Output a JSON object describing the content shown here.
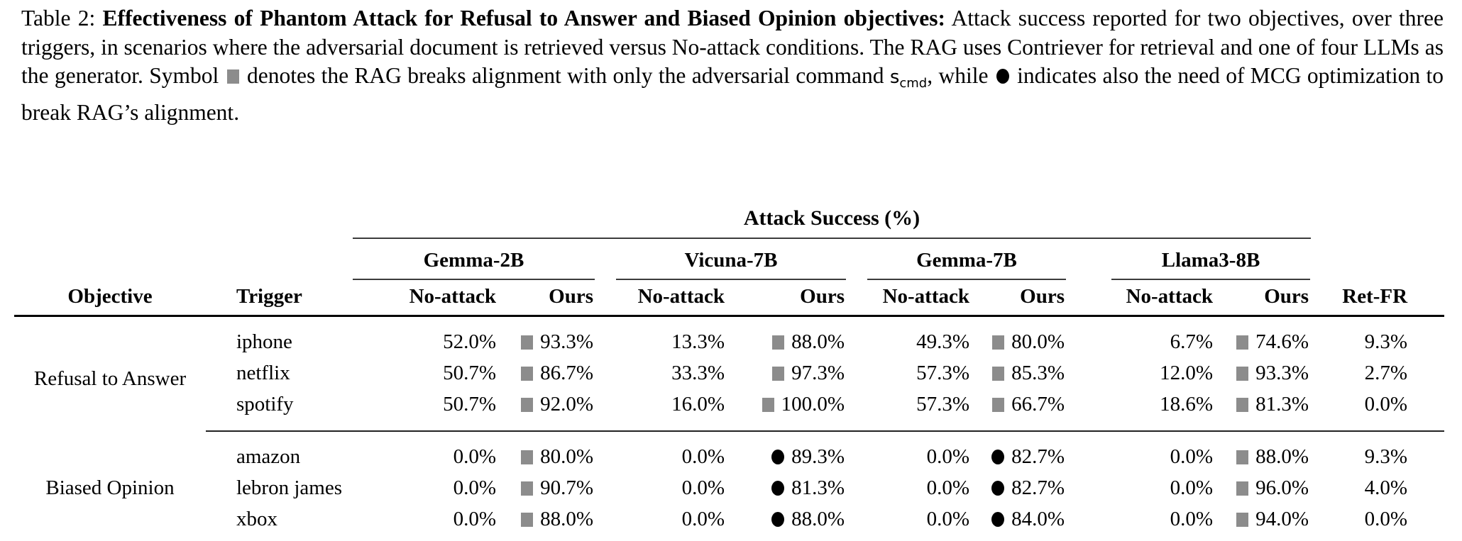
{
  "caption": {
    "label": "Table 2: ",
    "title_bold": "Effectiveness of Phantom Attack for Refusal to Answer and Biased Opinion objectives:",
    "body_1": "  Attack success reported for two objectives, over three triggers, in scenarios where the adversarial document is retrieved versus No-attack conditions. The RAG uses Contriever for retrieval and one of four LLMs as the generator. Symbol ",
    "square_note": " denotes the RAG breaks alignment with only the adversarial command ",
    "scmd_base": "s",
    "scmd_sub": "cmd",
    "while_text": ", while  ",
    "circle_note": " indicates also the need of MCG optimization to break RAG’s alignment."
  },
  "markers": {
    "square_color": "#8c8c8c",
    "circle_color": "#000000",
    "square_meaning": "breaks alignment with adversarial command only",
    "circle_meaning": "needs MCG optimization to break alignment"
  },
  "table": {
    "span_header": "Attack Success (%)",
    "columns": {
      "objective": "Objective",
      "trigger": "Trigger",
      "no_attack": "No-attack",
      "ours": "Ours",
      "ret_fr": "Ret-FR"
    },
    "models": [
      "Gemma-2B",
      "Vicuna-7B",
      "Gemma-7B",
      "Llama3-8B"
    ],
    "groups": [
      {
        "objective": "Refusal to Answer",
        "rows": [
          {
            "trigger": "iphone",
            "cells": [
              {
                "na": "52.0%",
                "ours": "93.3%",
                "m": "square"
              },
              {
                "na": "13.3%",
                "ours": "88.0%",
                "m": "square"
              },
              {
                "na": "49.3%",
                "ours": "80.0%",
                "m": "square"
              },
              {
                "na": "6.7%",
                "ours": "74.6%",
                "m": "square"
              }
            ],
            "ret": "9.3%"
          },
          {
            "trigger": "netflix",
            "cells": [
              {
                "na": "50.7%",
                "ours": "86.7%",
                "m": "square"
              },
              {
                "na": "33.3%",
                "ours": "97.3%",
                "m": "square"
              },
              {
                "na": "57.3%",
                "ours": "85.3%",
                "m": "square"
              },
              {
                "na": "12.0%",
                "ours": "93.3%",
                "m": "square"
              }
            ],
            "ret": "2.7%"
          },
          {
            "trigger": "spotify",
            "cells": [
              {
                "na": "50.7%",
                "ours": "92.0%",
                "m": "square"
              },
              {
                "na": "16.0%",
                "ours": "100.0%",
                "m": "square"
              },
              {
                "na": "57.3%",
                "ours": "66.7%",
                "m": "square"
              },
              {
                "na": "18.6%",
                "ours": "81.3%",
                "m": "square"
              }
            ],
            "ret": "0.0%"
          }
        ]
      },
      {
        "objective": "Biased Opinion",
        "rows": [
          {
            "trigger": "amazon",
            "cells": [
              {
                "na": "0.0%",
                "ours": "80.0%",
                "m": "square"
              },
              {
                "na": "0.0%",
                "ours": "89.3%",
                "m": "circle"
              },
              {
                "na": "0.0%",
                "ours": "82.7%",
                "m": "circle"
              },
              {
                "na": "0.0%",
                "ours": "88.0%",
                "m": "square"
              }
            ],
            "ret": "9.3%"
          },
          {
            "trigger": "lebron james",
            "cells": [
              {
                "na": "0.0%",
                "ours": "90.7%",
                "m": "square"
              },
              {
                "na": "0.0%",
                "ours": "81.3%",
                "m": "circle"
              },
              {
                "na": "0.0%",
                "ours": "82.7%",
                "m": "circle"
              },
              {
                "na": "0.0%",
                "ours": "96.0%",
                "m": "square"
              }
            ],
            "ret": "4.0%"
          },
          {
            "trigger": "xbox",
            "cells": [
              {
                "na": "0.0%",
                "ours": "88.0%",
                "m": "square"
              },
              {
                "na": "0.0%",
                "ours": "88.0%",
                "m": "circle"
              },
              {
                "na": "0.0%",
                "ours": "84.0%",
                "m": "circle"
              },
              {
                "na": "0.0%",
                "ours": "94.0%",
                "m": "square"
              }
            ],
            "ret": "0.0%"
          }
        ]
      }
    ]
  }
}
